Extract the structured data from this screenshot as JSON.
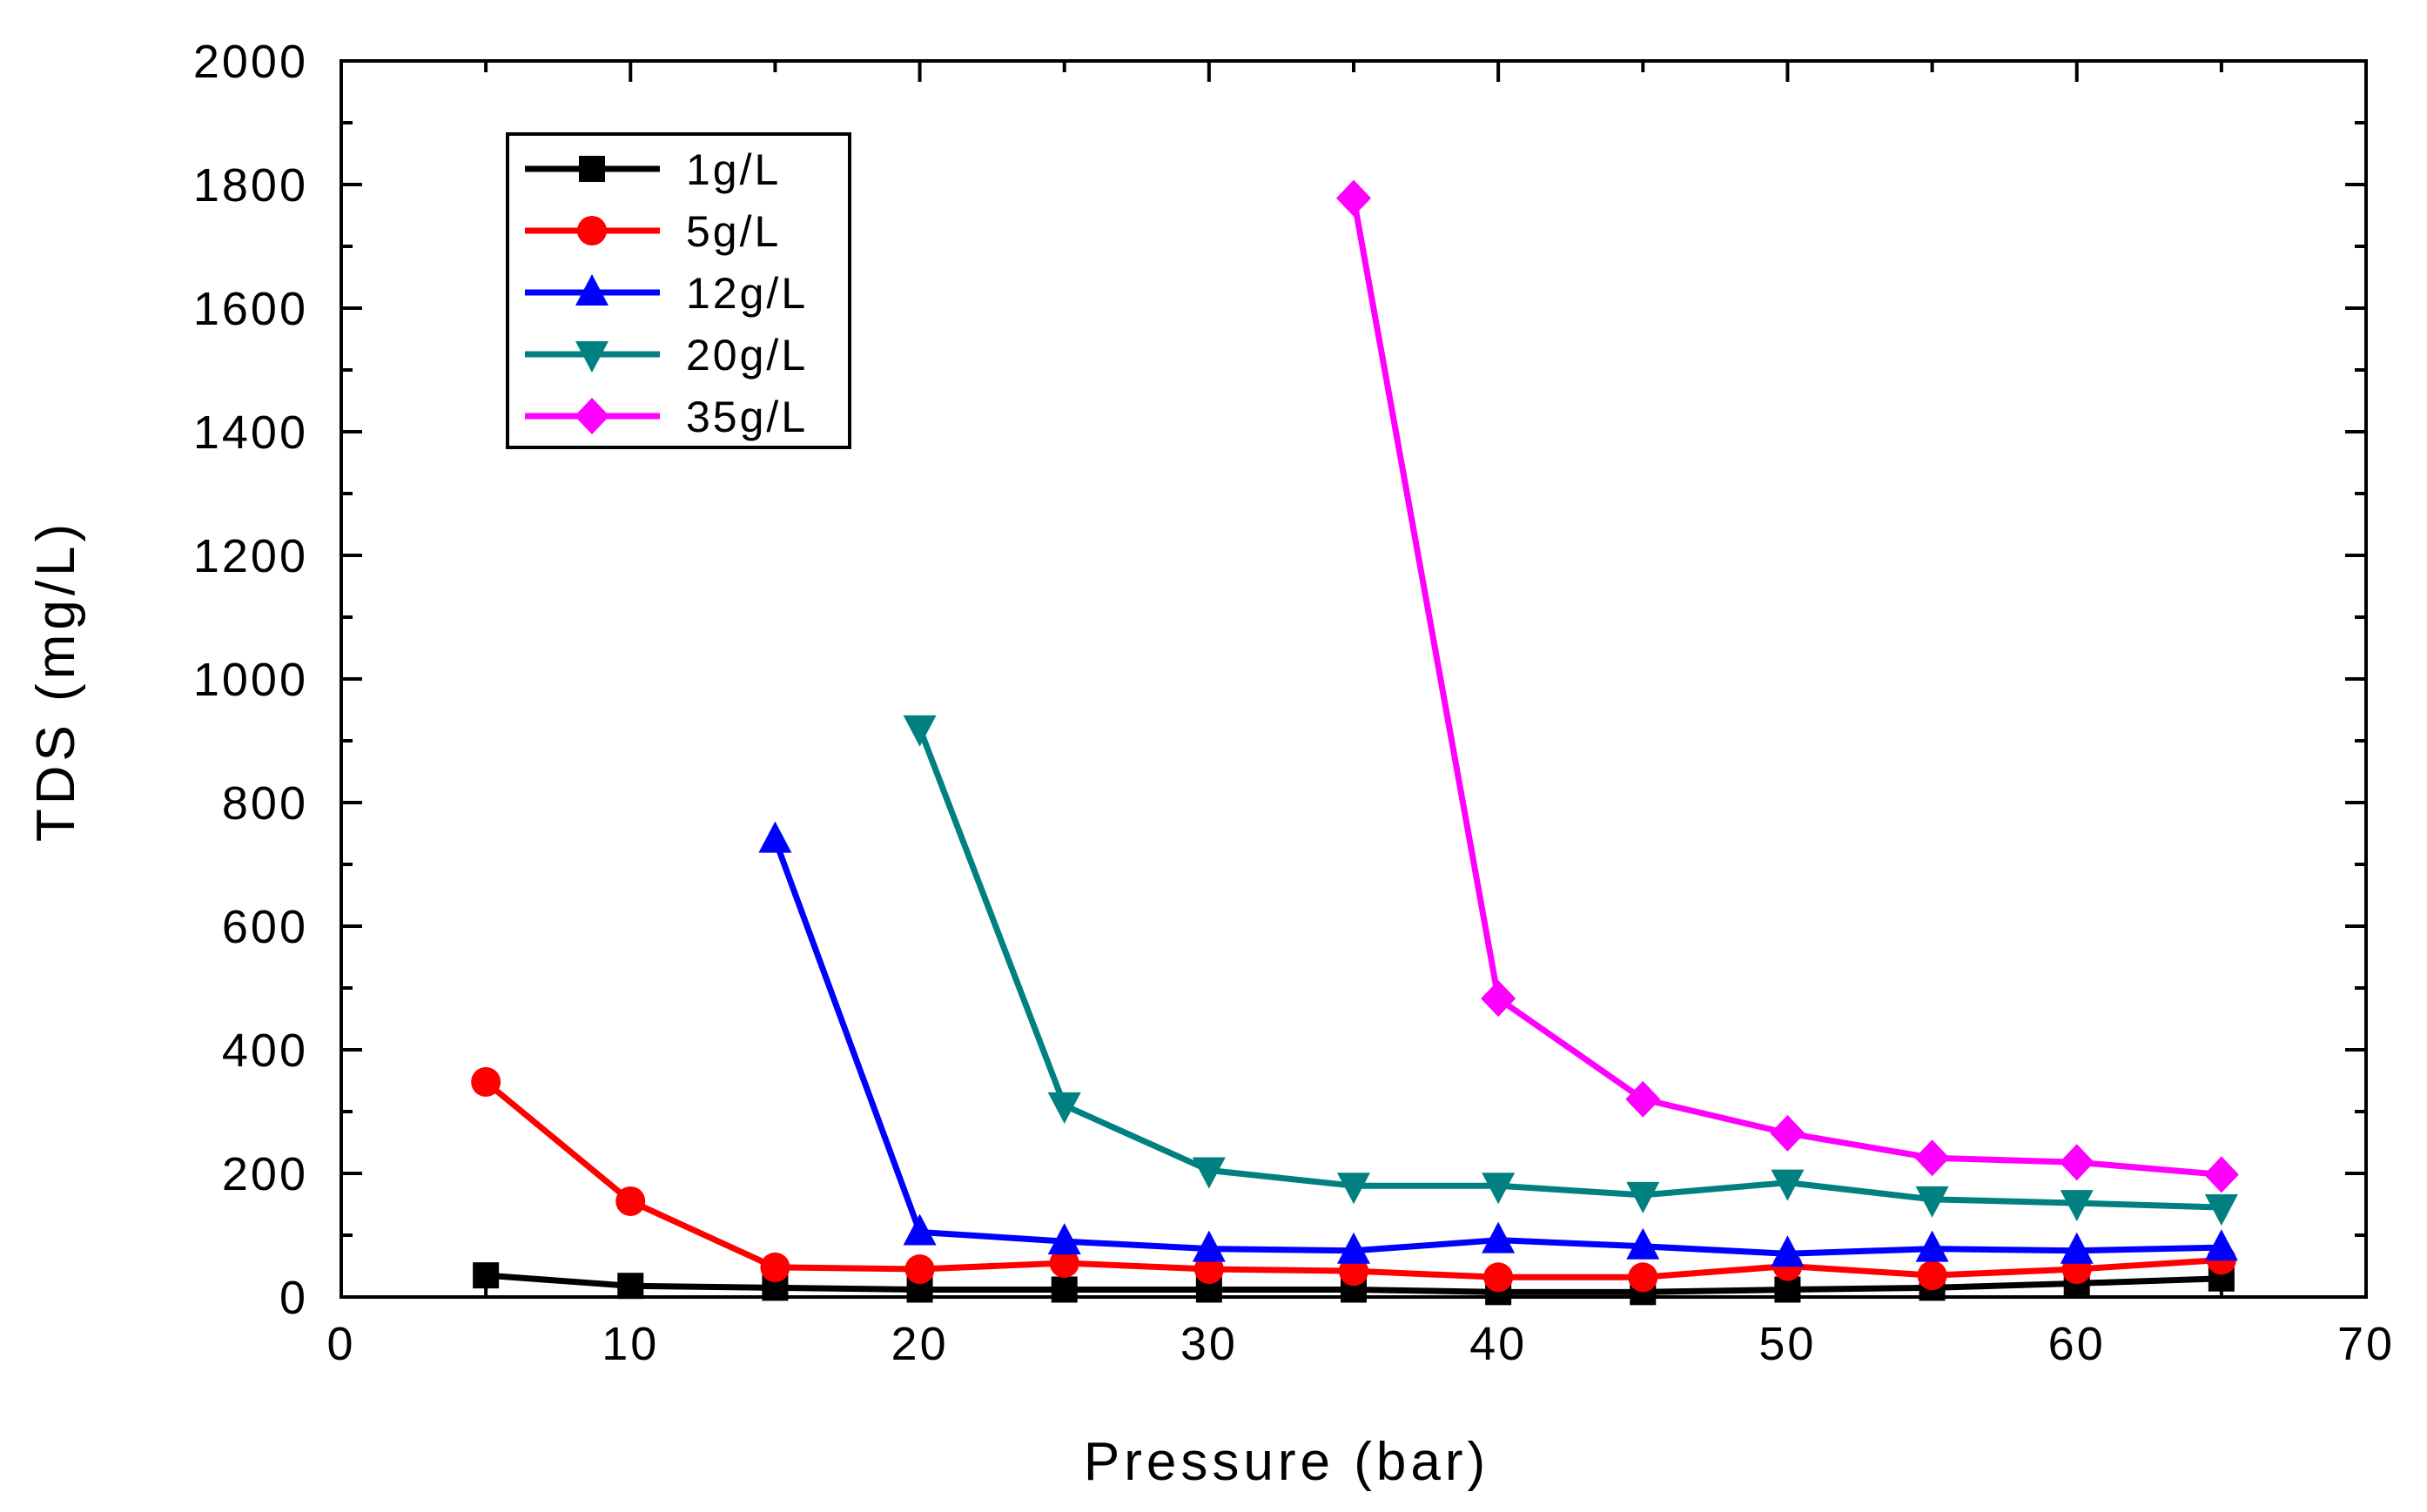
{
  "chart_data": {
    "type": "line",
    "title": "",
    "xlabel": "Pressure (bar)",
    "ylabel": "TDS (mg/L)",
    "xlim": [
      0,
      70
    ],
    "ylim": [
      0,
      2000
    ],
    "xticks": [
      0,
      10,
      20,
      30,
      40,
      50,
      60,
      70
    ],
    "yticks": [
      0,
      200,
      400,
      600,
      800,
      1000,
      1200,
      1400,
      1600,
      1800,
      2000
    ],
    "grid": false,
    "legend_position": "top-left",
    "series": [
      {
        "name": "1g/L",
        "color": "#000000",
        "marker": "square",
        "x": [
          5,
          10,
          15,
          20,
          25,
          30,
          35,
          40,
          45,
          50,
          55,
          60,
          65
        ],
        "y": [
          35,
          18,
          15,
          12,
          12,
          12,
          12,
          8,
          8,
          12,
          15,
          22,
          30
        ]
      },
      {
        "name": "5g/L",
        "color": "#ff0000",
        "marker": "circle",
        "x": [
          5,
          10,
          15,
          20,
          25,
          30,
          35,
          40,
          45,
          50,
          55,
          60,
          65
        ],
        "y": [
          348,
          155,
          48,
          45,
          55,
          45,
          42,
          32,
          32,
          50,
          35,
          45,
          60
        ]
      },
      {
        "name": "12g/L",
        "color": "#0000ff",
        "marker": "triangle-up",
        "x": [
          15,
          20,
          25,
          30,
          35,
          40,
          45,
          50,
          55,
          60,
          65
        ],
        "y": [
          740,
          105,
          90,
          78,
          75,
          92,
          82,
          70,
          78,
          75,
          80
        ]
      },
      {
        "name": "20g/L",
        "color": "#008080",
        "marker": "triangle-down",
        "x": [
          20,
          25,
          30,
          35,
          40,
          45,
          50,
          55,
          60,
          65
        ],
        "y": [
          920,
          310,
          205,
          180,
          180,
          165,
          185,
          158,
          152,
          145
        ]
      },
      {
        "name": "35g/L",
        "color": "#ff00ff",
        "marker": "diamond",
        "x": [
          35,
          40,
          45,
          50,
          55,
          60,
          65
        ],
        "y": [
          1778,
          483,
          320,
          265,
          225,
          218,
          198
        ]
      }
    ]
  }
}
